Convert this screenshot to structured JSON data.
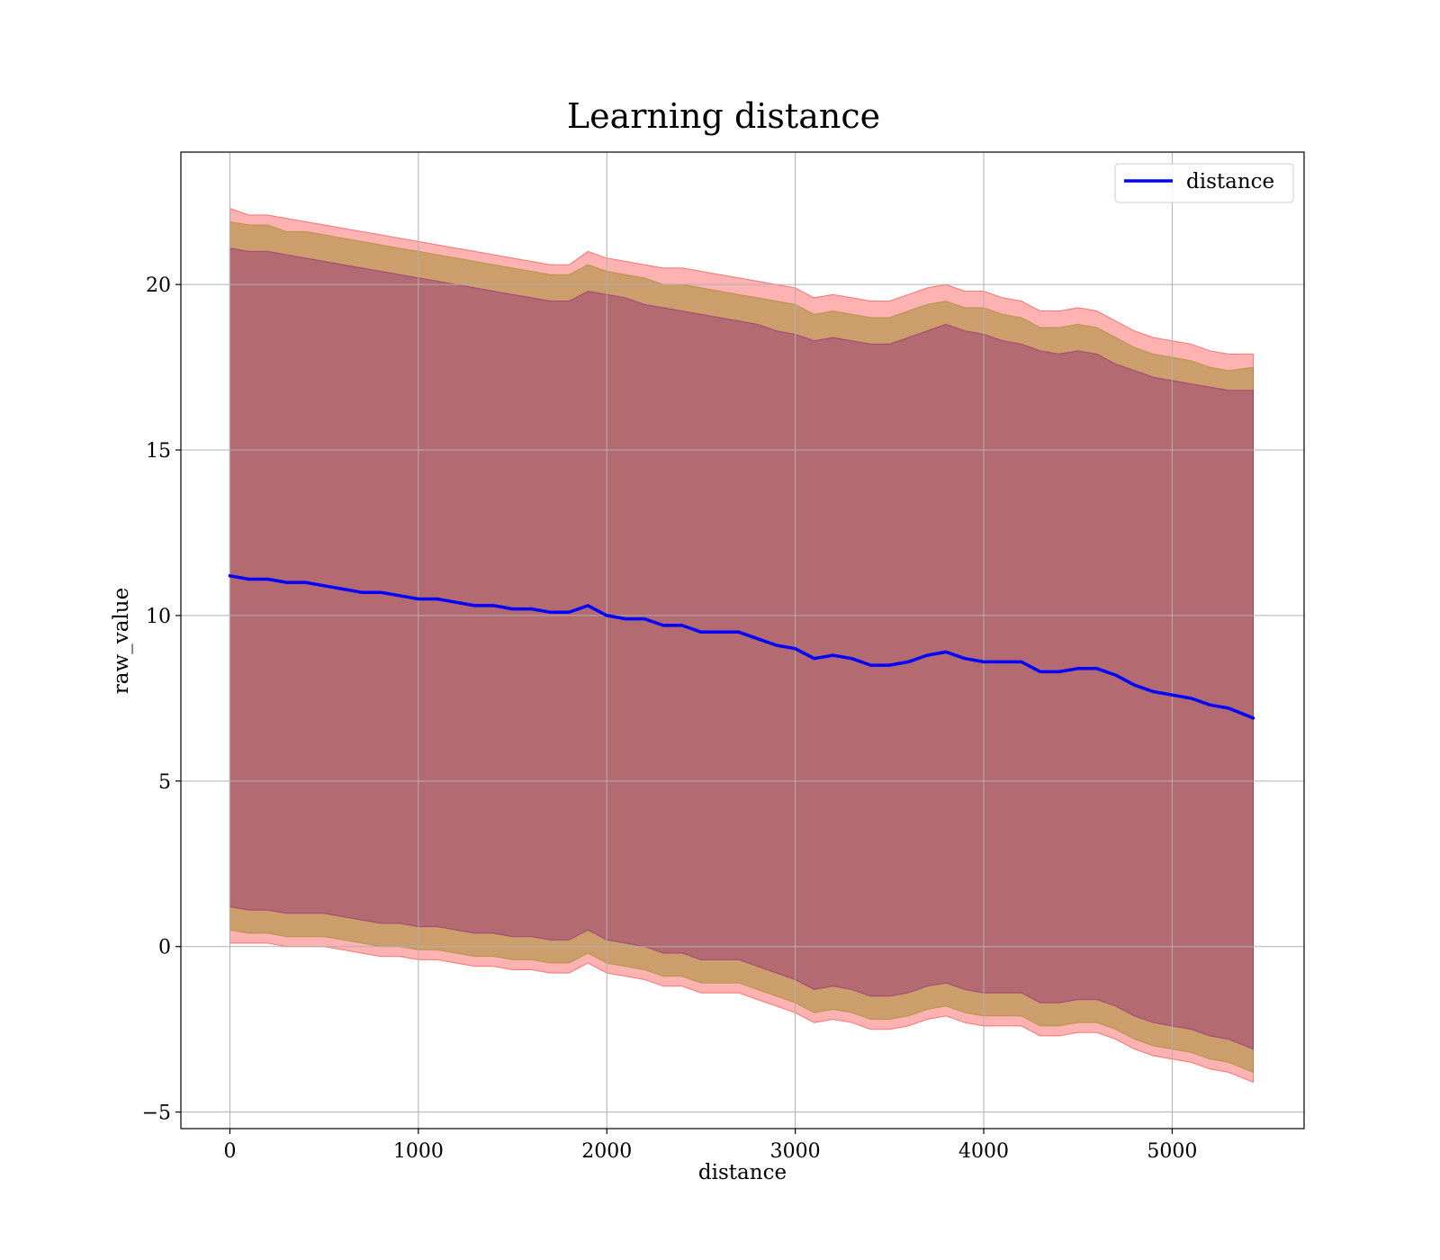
{
  "chart_data": {
    "type": "line",
    "title": "Learning distance",
    "xlabel": "distance",
    "ylabel": "raw_value",
    "xlim": [
      -260,
      5700
    ],
    "ylim": [
      -5.5,
      24.0
    ],
    "x_ticks": [
      0,
      1000,
      2000,
      3000,
      4000,
      5000
    ],
    "y_ticks": [
      -5,
      0,
      5,
      10,
      15,
      20
    ],
    "x_tick_labels": [
      "0",
      "1000",
      "2000",
      "3000",
      "4000",
      "5000"
    ],
    "y_tick_labels": [
      "−5",
      "0",
      "5",
      "10",
      "15",
      "20"
    ],
    "grid": true,
    "legend": {
      "placement": "top-right",
      "entries": [
        "distance"
      ]
    },
    "colors": {
      "line": "#0000ff",
      "outer_band": "#ff0000",
      "inner_band": "#808000",
      "core_band": "#800080",
      "grid": "#b0b0b0"
    },
    "series": [
      {
        "name": "distance",
        "x": [
          0,
          100,
          200,
          300,
          400,
          500,
          600,
          700,
          800,
          900,
          1000,
          1100,
          1200,
          1300,
          1400,
          1500,
          1600,
          1700,
          1800,
          1900,
          2000,
          2100,
          2200,
          2300,
          2400,
          2500,
          2600,
          2700,
          2800,
          2900,
          3000,
          3100,
          3200,
          3300,
          3400,
          3500,
          3600,
          3700,
          3800,
          3900,
          4000,
          4100,
          4200,
          4300,
          4400,
          4500,
          4600,
          4700,
          4800,
          4900,
          5000,
          5100,
          5200,
          5300,
          5430
        ],
        "y": [
          11.2,
          11.1,
          11.1,
          11.0,
          11.0,
          10.9,
          10.8,
          10.7,
          10.7,
          10.6,
          10.5,
          10.5,
          10.4,
          10.3,
          10.3,
          10.2,
          10.2,
          10.1,
          10.1,
          10.3,
          10.0,
          9.9,
          9.9,
          9.7,
          9.7,
          9.5,
          9.5,
          9.5,
          9.3,
          9.1,
          9.0,
          8.7,
          8.8,
          8.7,
          8.5,
          8.5,
          8.6,
          8.8,
          8.9,
          8.7,
          8.6,
          8.6,
          8.6,
          8.3,
          8.3,
          8.4,
          8.4,
          8.2,
          7.9,
          7.7,
          7.6,
          7.5,
          7.3,
          7.2,
          6.9
        ]
      }
    ],
    "bands": [
      {
        "role": "outer",
        "upper": [
          22.3,
          22.1,
          22.1,
          22.0,
          21.9,
          21.8,
          21.7,
          21.6,
          21.5,
          21.4,
          21.3,
          21.2,
          21.1,
          21.0,
          20.9,
          20.8,
          20.7,
          20.6,
          20.6,
          21.0,
          20.8,
          20.7,
          20.6,
          20.5,
          20.5,
          20.4,
          20.3,
          20.2,
          20.1,
          20.0,
          19.9,
          19.6,
          19.7,
          19.6,
          19.5,
          19.5,
          19.7,
          19.9,
          20.0,
          19.8,
          19.8,
          19.6,
          19.5,
          19.2,
          19.2,
          19.3,
          19.2,
          18.9,
          18.6,
          18.4,
          18.3,
          18.2,
          18.0,
          17.9,
          17.9
        ],
        "lower": [
          0.1,
          0.1,
          0.1,
          0.0,
          0.0,
          0.0,
          -0.1,
          -0.2,
          -0.3,
          -0.3,
          -0.4,
          -0.4,
          -0.5,
          -0.6,
          -0.6,
          -0.7,
          -0.7,
          -0.8,
          -0.8,
          -0.5,
          -0.8,
          -0.9,
          -1.0,
          -1.2,
          -1.2,
          -1.4,
          -1.4,
          -1.4,
          -1.6,
          -1.8,
          -2.0,
          -2.3,
          -2.2,
          -2.3,
          -2.5,
          -2.5,
          -2.4,
          -2.2,
          -2.1,
          -2.3,
          -2.4,
          -2.4,
          -2.4,
          -2.7,
          -2.7,
          -2.6,
          -2.6,
          -2.8,
          -3.1,
          -3.3,
          -3.4,
          -3.5,
          -3.7,
          -3.8,
          -4.1
        ]
      },
      {
        "role": "inner",
        "upper": [
          21.9,
          21.8,
          21.8,
          21.6,
          21.6,
          21.5,
          21.4,
          21.3,
          21.2,
          21.1,
          21.0,
          20.9,
          20.8,
          20.7,
          20.6,
          20.5,
          20.4,
          20.3,
          20.3,
          20.6,
          20.4,
          20.3,
          20.2,
          20.0,
          20.0,
          19.9,
          19.8,
          19.7,
          19.6,
          19.5,
          19.4,
          19.1,
          19.2,
          19.1,
          19.0,
          19.0,
          19.2,
          19.4,
          19.5,
          19.3,
          19.3,
          19.1,
          19.0,
          18.7,
          18.7,
          18.8,
          18.7,
          18.4,
          18.1,
          17.9,
          17.8,
          17.7,
          17.5,
          17.4,
          17.5
        ],
        "lower": [
          0.5,
          0.4,
          0.4,
          0.3,
          0.3,
          0.3,
          0.2,
          0.1,
          0.0,
          0.0,
          -0.1,
          -0.1,
          -0.2,
          -0.3,
          -0.3,
          -0.4,
          -0.4,
          -0.5,
          -0.5,
          -0.2,
          -0.5,
          -0.6,
          -0.7,
          -0.9,
          -0.9,
          -1.1,
          -1.1,
          -1.1,
          -1.3,
          -1.5,
          -1.7,
          -2.0,
          -1.9,
          -2.0,
          -2.2,
          -2.2,
          -2.1,
          -1.9,
          -1.8,
          -2.0,
          -2.1,
          -2.1,
          -2.1,
          -2.4,
          -2.4,
          -2.3,
          -2.3,
          -2.5,
          -2.8,
          -3.0,
          -3.1,
          -3.2,
          -3.4,
          -3.5,
          -3.8
        ]
      },
      {
        "role": "core",
        "upper": [
          21.1,
          21.0,
          21.0,
          20.9,
          20.8,
          20.7,
          20.6,
          20.5,
          20.4,
          20.3,
          20.2,
          20.1,
          20.0,
          19.9,
          19.8,
          19.7,
          19.6,
          19.5,
          19.5,
          19.8,
          19.7,
          19.6,
          19.4,
          19.3,
          19.2,
          19.1,
          19.0,
          18.9,
          18.8,
          18.6,
          18.5,
          18.3,
          18.4,
          18.3,
          18.2,
          18.2,
          18.4,
          18.6,
          18.8,
          18.6,
          18.5,
          18.3,
          18.2,
          18.0,
          17.9,
          18.0,
          17.9,
          17.6,
          17.4,
          17.2,
          17.1,
          17.0,
          16.9,
          16.8,
          16.8
        ],
        "lower": [
          1.2,
          1.1,
          1.1,
          1.0,
          1.0,
          1.0,
          0.9,
          0.8,
          0.7,
          0.7,
          0.6,
          0.6,
          0.5,
          0.4,
          0.4,
          0.3,
          0.3,
          0.2,
          0.2,
          0.5,
          0.2,
          0.1,
          0.0,
          -0.2,
          -0.2,
          -0.4,
          -0.4,
          -0.4,
          -0.6,
          -0.8,
          -1.0,
          -1.3,
          -1.2,
          -1.3,
          -1.5,
          -1.5,
          -1.4,
          -1.2,
          -1.1,
          -1.3,
          -1.4,
          -1.4,
          -1.4,
          -1.7,
          -1.7,
          -1.6,
          -1.6,
          -1.8,
          -2.1,
          -2.3,
          -2.4,
          -2.5,
          -2.7,
          -2.8,
          -3.1
        ]
      }
    ]
  }
}
